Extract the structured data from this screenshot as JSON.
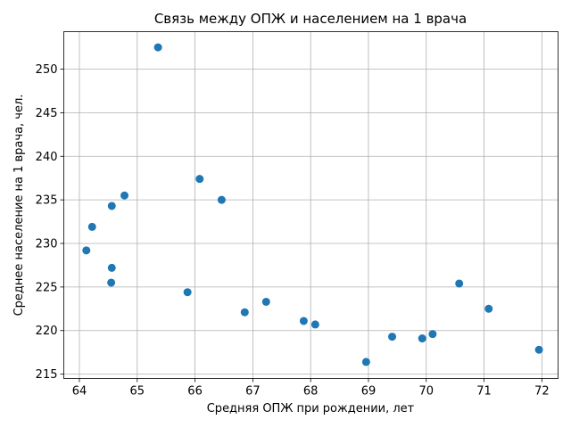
{
  "chart_data": {
    "type": "scatter",
    "title": "Связь между ОПЖ и населением на 1 врача",
    "xlabel": "Средняя ОПЖ при рождении, лет",
    "ylabel": "Среднее население на 1 врача, чел.",
    "xlim": [
      63.73,
      72.28
    ],
    "ylim": [
      214.5,
      254.3
    ],
    "xticks": [
      64,
      65,
      66,
      67,
      68,
      69,
      70,
      71,
      72
    ],
    "yticks": [
      215,
      220,
      225,
      230,
      235,
      240,
      245,
      250
    ],
    "grid": true,
    "marker_color": "#1f77b4",
    "points": [
      {
        "x": 64.12,
        "y": 229.2
      },
      {
        "x": 64.22,
        "y": 231.9
      },
      {
        "x": 64.55,
        "y": 225.5
      },
      {
        "x": 64.56,
        "y": 234.3
      },
      {
        "x": 64.56,
        "y": 227.2
      },
      {
        "x": 64.78,
        "y": 235.5
      },
      {
        "x": 65.36,
        "y": 252.5
      },
      {
        "x": 65.87,
        "y": 224.4
      },
      {
        "x": 66.08,
        "y": 237.4
      },
      {
        "x": 66.46,
        "y": 235.0
      },
      {
        "x": 66.86,
        "y": 222.1
      },
      {
        "x": 67.23,
        "y": 223.3
      },
      {
        "x": 67.88,
        "y": 221.1
      },
      {
        "x": 68.08,
        "y": 220.7
      },
      {
        "x": 68.96,
        "y": 216.4
      },
      {
        "x": 69.41,
        "y": 219.3
      },
      {
        "x": 69.93,
        "y": 219.1
      },
      {
        "x": 70.11,
        "y": 219.6
      },
      {
        "x": 70.57,
        "y": 225.4
      },
      {
        "x": 71.08,
        "y": 222.5
      },
      {
        "x": 71.95,
        "y": 217.8
      }
    ]
  }
}
